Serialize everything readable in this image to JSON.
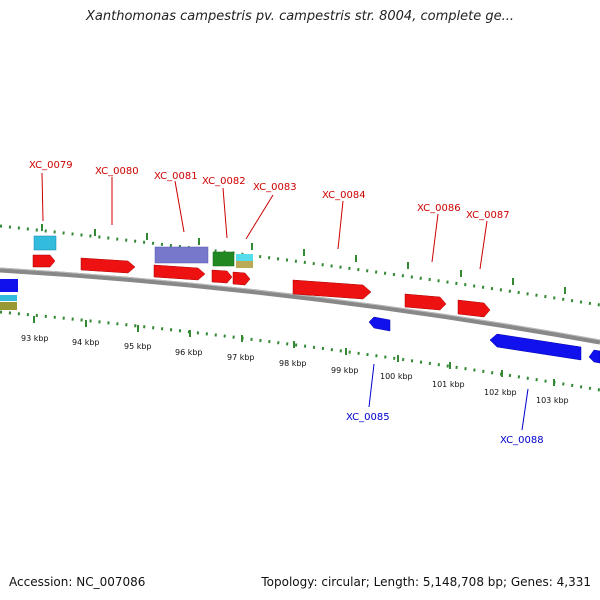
{
  "title": "Xanthomonas campestris pv. campestris str. 8004, complete ge...",
  "footer": {
    "accession": "Accession: NC_007086",
    "summary": "Topology: circular; Length: 5,148,708 bp; Genes: 4,331"
  },
  "colors": {
    "forward_gene": "#ee1111",
    "reverse_gene": "#1111ee",
    "forward_label": "#cc0000",
    "reverse_label": "#0000cc",
    "tick": "#338833",
    "backbone": "#888888",
    "feature_purple": "#7777cc",
    "feature_green": "#228822",
    "feature_cyan": "#33bbdd",
    "feature_olive": "#999933"
  },
  "chart_data": {
    "type": "genome-map",
    "view": "linear-segment",
    "scale_unit": "kbp",
    "ticks": [
      "93 kbp",
      "94 kbp",
      "95 kbp",
      "96 kbp",
      "97 kbp",
      "98 kbp",
      "99 kbp",
      "100 kbp",
      "101 kbp",
      "102 kbp",
      "103 kbp"
    ],
    "forward_genes": [
      "XC_0079",
      "XC_0080",
      "XC_0081",
      "XC_0082",
      "XC_0083",
      "XC_0084",
      "XC_0086",
      "XC_0087"
    ],
    "reverse_genes": [
      "XC_0085",
      "XC_0088"
    ]
  }
}
